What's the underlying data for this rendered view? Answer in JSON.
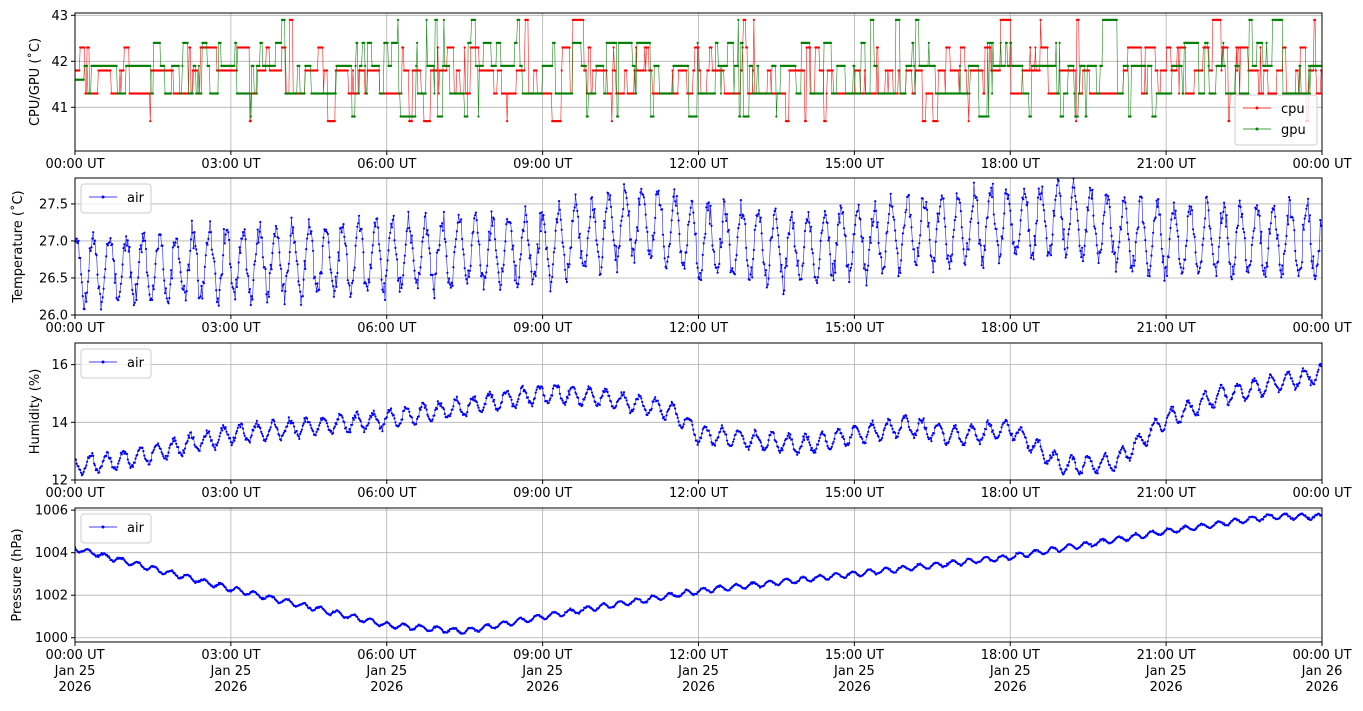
{
  "colors": {
    "cpu": "#ff0000",
    "gpu": "#008000",
    "air": "#0000ff"
  },
  "chart_data": [
    {
      "type": "line",
      "ylabel": "CPU/GPU (˚C)",
      "ylim": [
        40.05,
        43.05
      ],
      "yticks": [
        "41",
        "42",
        "43"
      ],
      "legend": "bottom-right",
      "x_range": [
        "2026-01-25 00:00 UT",
        "2026-01-26 00:00 UT"
      ],
      "xtick_labels": [
        "00:00 UT",
        "03:00 UT",
        "06:00 UT",
        "09:00 UT",
        "12:00 UT",
        "15:00 UT",
        "18:00 UT",
        "21:00 UT",
        "00:00 UT"
      ],
      "grid": true,
      "series": [
        {
          "name": "cpu",
          "color": "#ff0000",
          "levels": [
            40.7,
            41.3,
            41.8,
            42.3,
            42.9
          ],
          "typical": 41.8
        },
        {
          "name": "gpu",
          "color": "#008000",
          "levels": [
            40.8,
            41.3,
            41.9,
            42.4,
            42.9
          ],
          "typical": 41.6
        }
      ]
    },
    {
      "type": "line",
      "ylabel": "Temperature (˚C)",
      "ylim": [
        26.0,
        27.85
      ],
      "yticks": [
        "26.0",
        "26.5",
        "27.0",
        "27.5"
      ],
      "legend": "top-left",
      "x_range": [
        "2026-01-25 00:00 UT",
        "2026-01-26 00:00 UT"
      ],
      "xtick_labels": [
        "00:00 UT",
        "03:00 UT",
        "06:00 UT",
        "09:00 UT",
        "12:00 UT",
        "15:00 UT",
        "18:00 UT",
        "21:00 UT",
        "00:00 UT"
      ],
      "grid": true,
      "series": [
        {
          "name": "air",
          "color": "#0000ff",
          "x_hours": [
            0,
            3,
            6,
            9,
            11,
            12,
            14,
            17,
            19,
            21,
            24
          ],
          "y": [
            26.6,
            26.7,
            26.8,
            26.9,
            27.3,
            27.0,
            26.9,
            27.2,
            27.3,
            27.0,
            27.0
          ],
          "oscillation_amplitude": 0.45
        }
      ]
    },
    {
      "type": "line",
      "ylabel": "Humidity (%)",
      "ylim": [
        12.0,
        16.75
      ],
      "yticks": [
        "12",
        "14",
        "16"
      ],
      "legend": "top-left",
      "x_range": [
        "2026-01-25 00:00 UT",
        "2026-01-26 00:00 UT"
      ],
      "xtick_labels": [
        "00:00 UT",
        "03:00 UT",
        "06:00 UT",
        "09:00 UT",
        "12:00 UT",
        "15:00 UT",
        "18:00 UT",
        "21:00 UT",
        "00:00 UT"
      ],
      "grid": true,
      "series": [
        {
          "name": "air",
          "color": "#0000ff",
          "x_hours": [
            0,
            1,
            3,
            6,
            9,
            10,
            11.5,
            12,
            14,
            16,
            17,
            18,
            19,
            20,
            21,
            22,
            24
          ],
          "y": [
            12.5,
            12.7,
            13.6,
            14.1,
            15.0,
            14.9,
            14.4,
            13.6,
            13.2,
            13.9,
            13.5,
            13.8,
            12.5,
            12.6,
            14.1,
            14.9,
            15.7
          ],
          "oscillation_amplitude": 0.3
        }
      ]
    },
    {
      "type": "line",
      "ylabel": "Pressure (hPa)",
      "ylim": [
        999.8,
        1006.1
      ],
      "yticks": [
        "1000",
        "1002",
        "1004",
        "1006"
      ],
      "legend": "top-left",
      "x_range": [
        "2026-01-25 00:00 UT",
        "2026-01-26 00:00 UT"
      ],
      "xtick_labels": [
        "00:00 UT",
        "03:00 UT",
        "06:00 UT",
        "09:00 UT",
        "12:00 UT",
        "15:00 UT",
        "18:00 UT",
        "21:00 UT",
        "00:00 UT"
      ],
      "xtick_dates": [
        "Jan 25",
        "Jan 25",
        "Jan 25",
        "Jan 25",
        "Jan 25",
        "Jan 25",
        "Jan 25",
        "Jan 25",
        "Jan 26"
      ],
      "xtick_years": [
        "2026",
        "2026",
        "2026",
        "2026",
        "2026",
        "2026",
        "2026",
        "2026",
        "2026"
      ],
      "grid": true,
      "series": [
        {
          "name": "air",
          "color": "#0000ff",
          "x_hours": [
            0,
            3,
            6,
            7.5,
            9,
            12,
            15,
            18,
            21,
            23,
            24
          ],
          "y": [
            1004.2,
            1002.3,
            1000.6,
            1000.3,
            1001.0,
            1002.2,
            1003.0,
            1003.8,
            1005.0,
            1005.7,
            1005.7
          ],
          "oscillation_amplitude": 0.12
        }
      ]
    }
  ]
}
